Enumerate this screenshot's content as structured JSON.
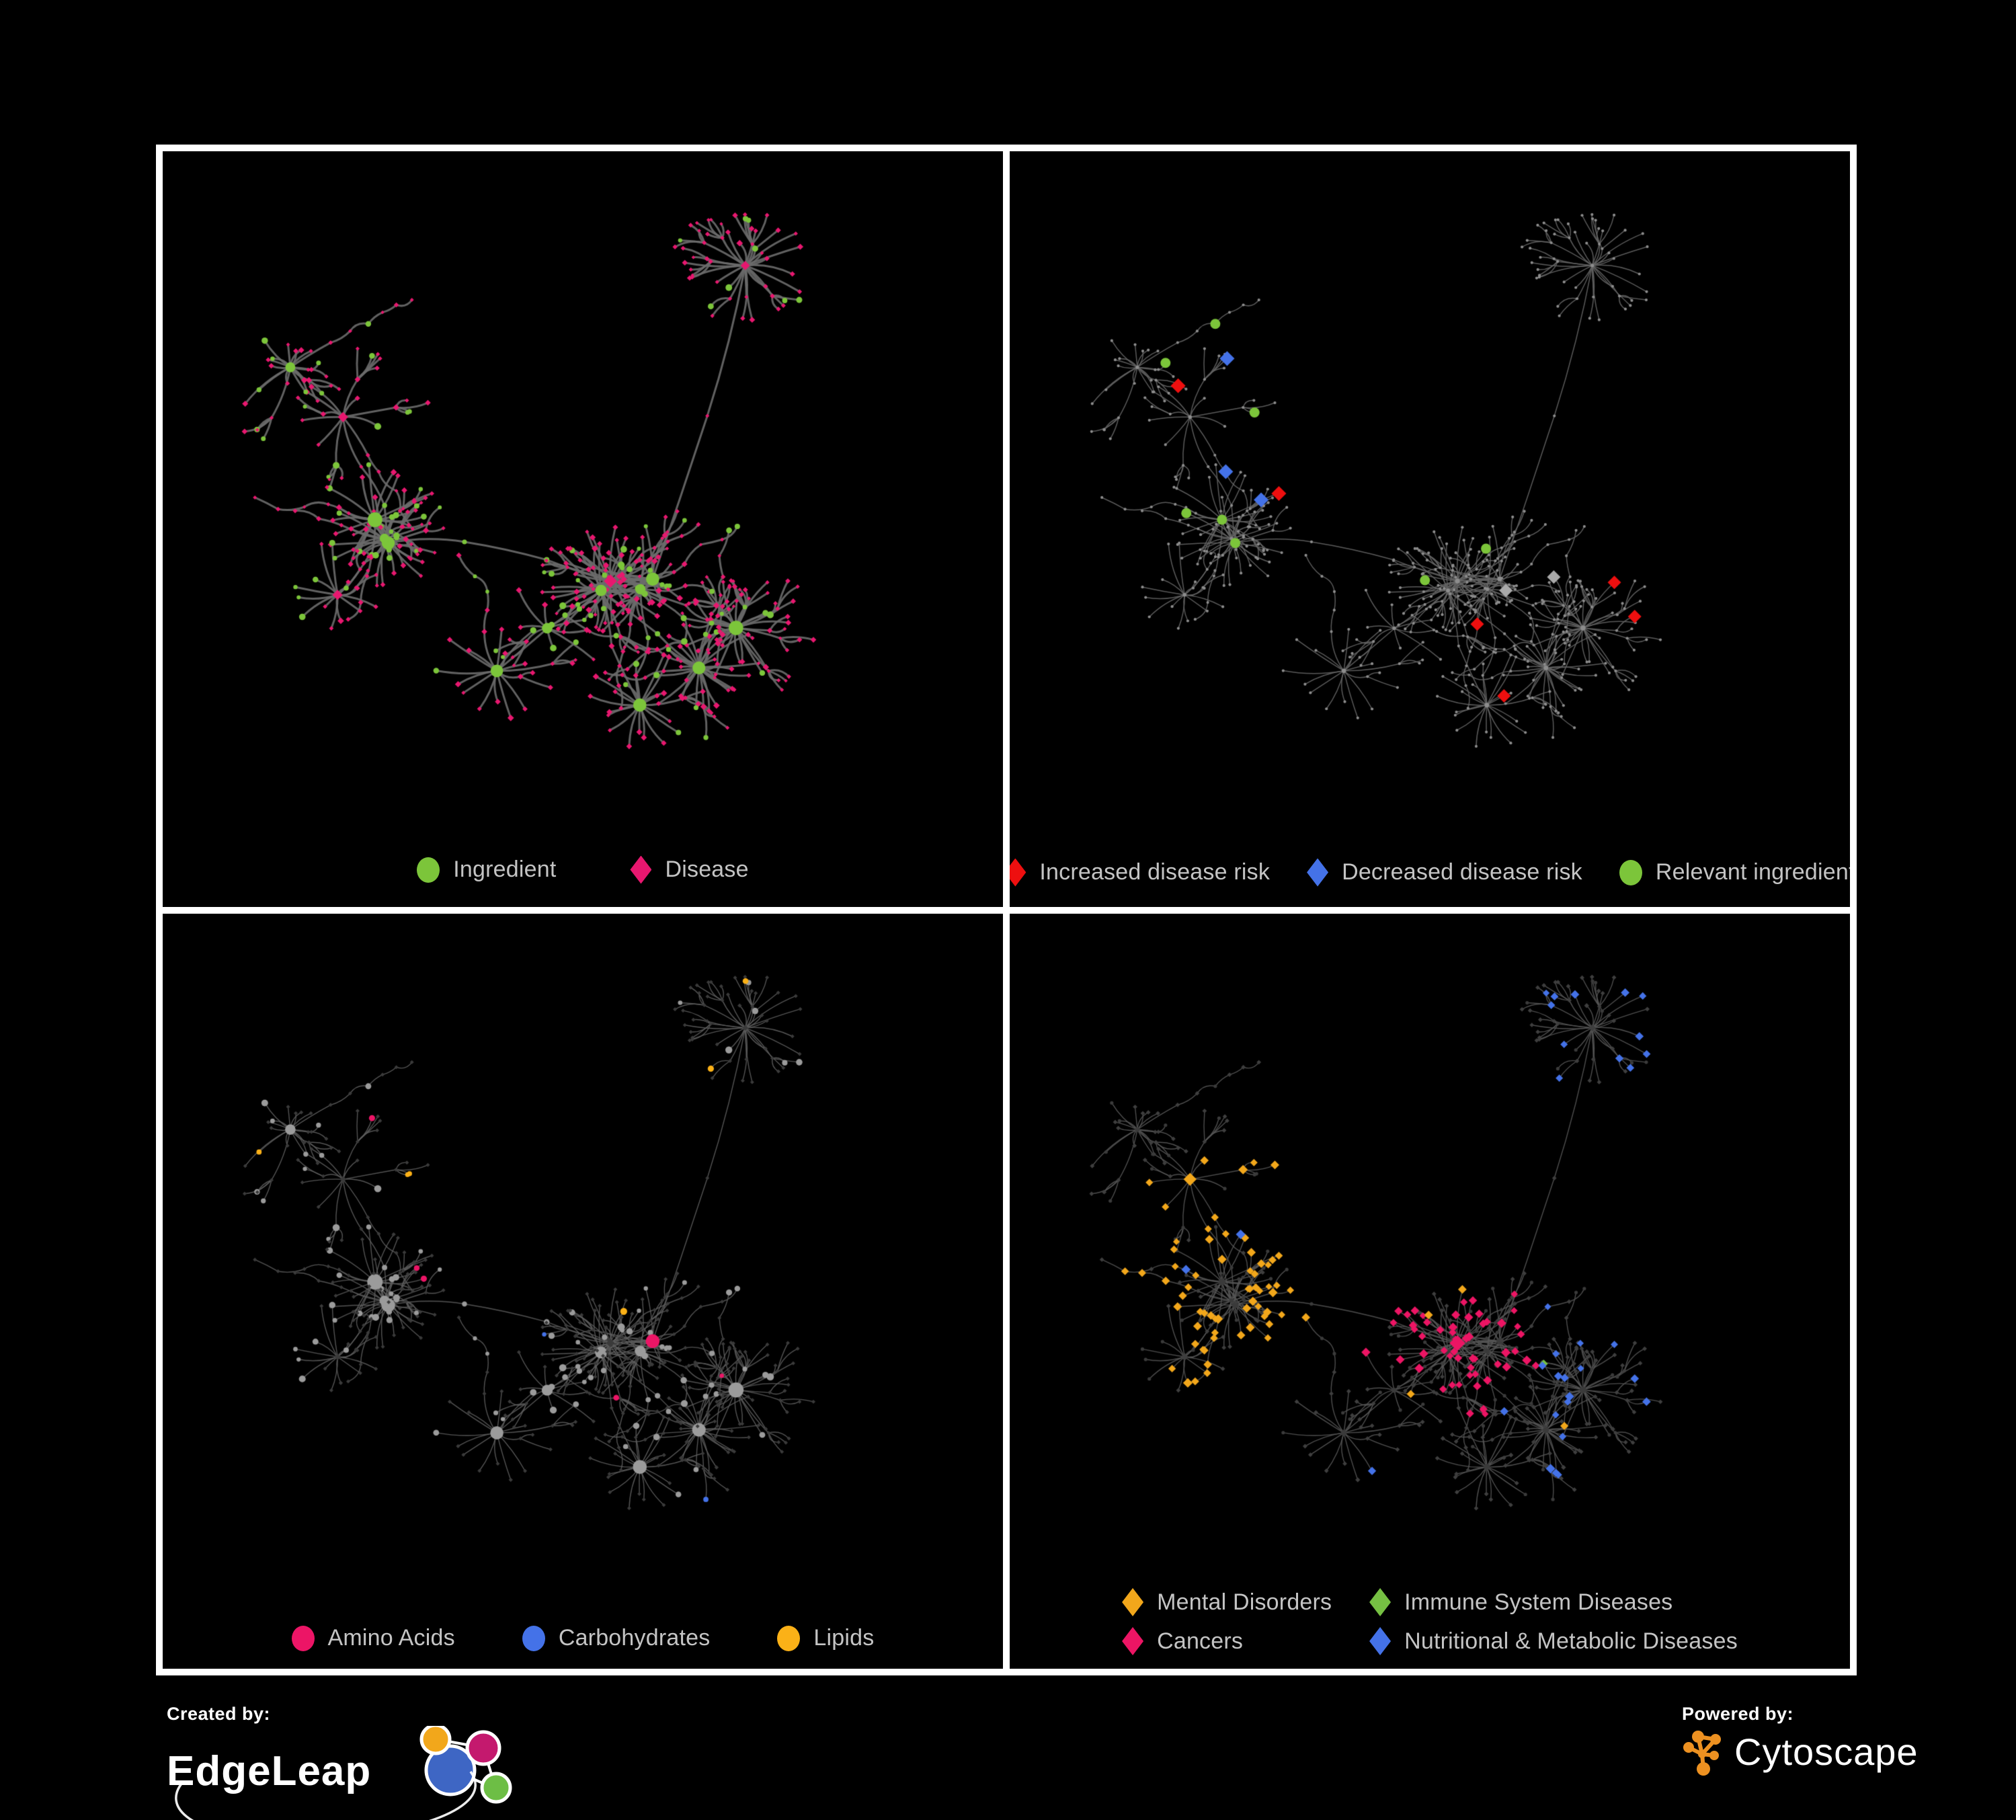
{
  "figure": {
    "background": "#000000",
    "frame_color": "#ffffff"
  },
  "panels": [
    {
      "name": "ingredient-disease-network",
      "legend": [
        {
          "label": "Ingredient",
          "shape": "circle",
          "color": "#7cc53a"
        },
        {
          "label": "Disease",
          "shape": "diamond",
          "color": "#e8176f"
        }
      ],
      "style": {
        "edge": "#6b6b6b",
        "edge_width": 3,
        "ingredient": "#7cc53a",
        "disease": "#e8176f"
      }
    },
    {
      "name": "disease-risk-network",
      "legend": [
        {
          "label": "Increased disease risk",
          "shape": "diamond",
          "color": "#ee0f0f"
        },
        {
          "label": "Decreased disease risk",
          "shape": "diamond",
          "color": "#4472e8"
        },
        {
          "label": "Relevant ingredient",
          "shape": "circle",
          "color": "#7cc53a"
        }
      ],
      "style": {
        "edge": "#646464",
        "edge_width": 1.5,
        "base": "#8d8d8d",
        "increased": "#ee0f0f",
        "decreased": "#4472e8",
        "unchanged": "#a9a9a9",
        "relevant": "#7cc53a"
      }
    },
    {
      "name": "metabolite-class-network",
      "legend": [
        {
          "label": "Amino Acids",
          "shape": "circle",
          "color": "#ec1566"
        },
        {
          "label": "Carbohydrates",
          "shape": "circle",
          "color": "#4472e8"
        },
        {
          "label": "Lipids",
          "shape": "circle",
          "color": "#fbb117"
        }
      ],
      "style": {
        "edge": "#5d5d5d",
        "edge_width": 1.4,
        "disease": "#3a3a3a",
        "base": "#9b9b9b",
        "amino": "#ec1566",
        "carbs": "#4472e8",
        "lipids": "#fbb117"
      }
    },
    {
      "name": "disease-class-network",
      "legend": [
        {
          "label": "Mental Disorders",
          "shape": "diamond",
          "color": "#f2a71b"
        },
        {
          "label": "Immune System Diseases",
          "shape": "diamond",
          "color": "#76c043"
        },
        {
          "label": "Cancers",
          "shape": "diamond",
          "color": "#ec1564"
        },
        {
          "label": "Nutritional & Metabolic Diseases",
          "shape": "diamond",
          "color": "#4472e8"
        }
      ],
      "style": {
        "edge": "#565656",
        "edge_width": 1.4,
        "ingredient": "#3a3a3a",
        "disease": "#3e3e3e",
        "mental": "#f2a71b",
        "immune": "#76c043",
        "cancers": "#ec1564",
        "nutritional": "#4472e8"
      }
    }
  ],
  "generation": {
    "seed": 1337,
    "hub_count": 16,
    "leaf_min": 6,
    "leaf_max": 36,
    "network_height": 1015
  },
  "footer": {
    "created_by_label": "Created by:",
    "brand_left": "EdgeLeap",
    "powered_by_label": "Powered by:",
    "brand_right": "Cytoscape",
    "edgeleap_colors": {
      "orange": "#f2a71b",
      "magenta": "#c4196e",
      "blue": "#3e66c4",
      "green": "#6dbe45"
    },
    "cytoscape_color": "#ed9121"
  }
}
